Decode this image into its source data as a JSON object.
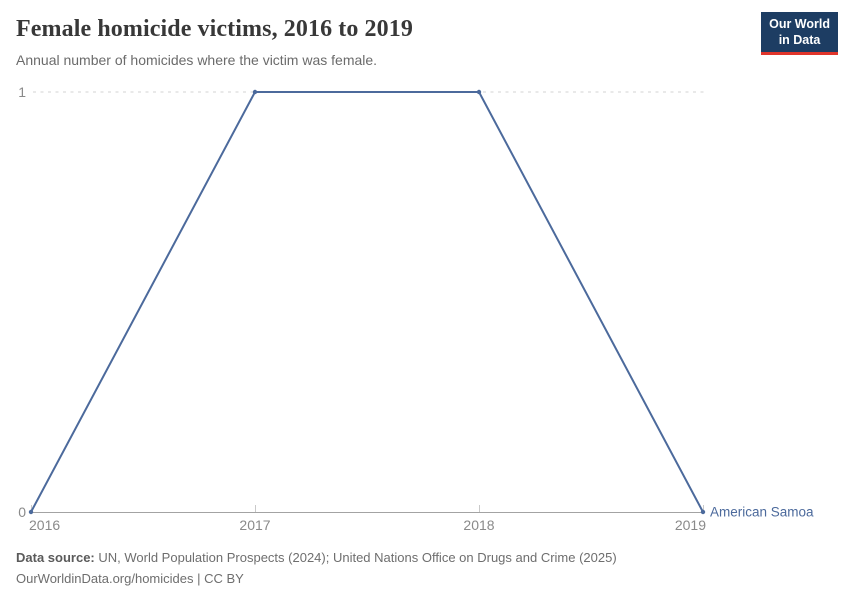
{
  "header": {
    "title": "Female homicide victims, 2016 to 2019",
    "subtitle": "Annual number of homicides where the victim was female.",
    "logo": {
      "line1": "Our World",
      "line2": "in Data"
    }
  },
  "chart_data": {
    "type": "line",
    "x": [
      2016,
      2017,
      2018,
      2019
    ],
    "series": [
      {
        "name": "American Samoa",
        "values": [
          0,
          1,
          1,
          0
        ]
      }
    ],
    "title": "Female homicide victims, 2016 to 2019",
    "subtitle": "Annual number of homicides where the victim was female.",
    "xlabel": "",
    "ylabel": "",
    "ylim": [
      0,
      1
    ],
    "yticks": [
      0,
      1
    ],
    "xticks": [
      2016,
      2017,
      2018,
      2019
    ],
    "grid": "horizontal dashed at 1, solid axis at 0",
    "legend": "entity label at line end, right side"
  },
  "colors": {
    "line": "#4C6A9C",
    "entity_label": "#4C6A9C",
    "grid": "#dcdcdc",
    "axis": "#a3a3a3",
    "tick": "#c9c9c9",
    "tick_label": "#8a8a8a",
    "title": "#383838",
    "subtitle": "#6b6b6b",
    "logo_bg": "#1d3d63",
    "logo_bar": "#e0352b"
  },
  "footer": {
    "datasource_label": "Data source:",
    "datasource_text": " UN, World Population Prospects (2024); United Nations Office on Drugs and Crime (2025)",
    "link_line": "OurWorldinData.org/homicides | CC BY"
  }
}
